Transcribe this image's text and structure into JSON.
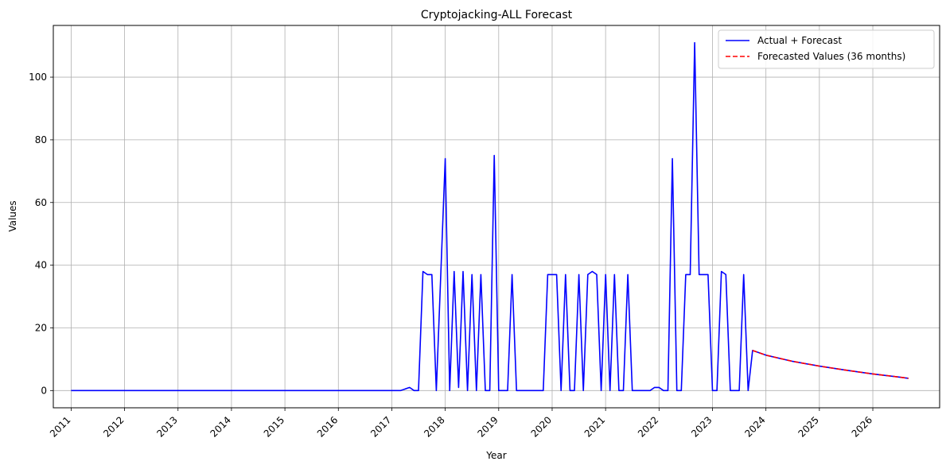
{
  "chart_data": {
    "type": "line",
    "title": "Cryptojacking-ALL Forecast",
    "xlabel": "Year",
    "ylabel": "Values",
    "x_ticks": [
      "2011",
      "2012",
      "2013",
      "2014",
      "2015",
      "2016",
      "2017",
      "2018",
      "2019",
      "2020",
      "2021",
      "2022",
      "2023",
      "2024",
      "2025",
      "2026"
    ],
    "y_ticks": [
      "0",
      "20",
      "40",
      "60",
      "80",
      "100"
    ],
    "xlim": [
      "2010-09",
      "2027-04"
    ],
    "ylim": [
      -5.5,
      116.5
    ],
    "grid": true,
    "legend_position": "top-right",
    "series": [
      {
        "name": "Actual + Forecast",
        "color": "#0000ff",
        "line_style": "solid",
        "points": [
          [
            "2011-01",
            0
          ],
          [
            "2017-03",
            0
          ],
          [
            "2017-05",
            1
          ],
          [
            "2017-06",
            0
          ],
          [
            "2017-07",
            0
          ],
          [
            "2017-08",
            38
          ],
          [
            "2017-09",
            37
          ],
          [
            "2017-10",
            37
          ],
          [
            "2017-11",
            0
          ],
          [
            "2018-01",
            74
          ],
          [
            "2018-02",
            0
          ],
          [
            "2018-03",
            38
          ],
          [
            "2018-04",
            1
          ],
          [
            "2018-05",
            38
          ],
          [
            "2018-06",
            0
          ],
          [
            "2018-07",
            37
          ],
          [
            "2018-08",
            0
          ],
          [
            "2018-09",
            37
          ],
          [
            "2018-10",
            0
          ],
          [
            "2018-11",
            0
          ],
          [
            "2018-12",
            75
          ],
          [
            "2019-01",
            0
          ],
          [
            "2019-02",
            0
          ],
          [
            "2019-03",
            0
          ],
          [
            "2019-04",
            37
          ],
          [
            "2019-05",
            0
          ],
          [
            "2019-11",
            0
          ],
          [
            "2019-12",
            37
          ],
          [
            "2020-01",
            37
          ],
          [
            "2020-02",
            37
          ],
          [
            "2020-03",
            0
          ],
          [
            "2020-04",
            37
          ],
          [
            "2020-05",
            0
          ],
          [
            "2020-06",
            0
          ],
          [
            "2020-07",
            37
          ],
          [
            "2020-08",
            0
          ],
          [
            "2020-09",
            37
          ],
          [
            "2020-10",
            38
          ],
          [
            "2020-11",
            37
          ],
          [
            "2020-12",
            0
          ],
          [
            "2021-01",
            37
          ],
          [
            "2021-02",
            0
          ],
          [
            "2021-03",
            37
          ],
          [
            "2021-04",
            0
          ],
          [
            "2021-05",
            0
          ],
          [
            "2021-06",
            37
          ],
          [
            "2021-07",
            0
          ],
          [
            "2021-11",
            0
          ],
          [
            "2021-12",
            1
          ],
          [
            "2022-01",
            1
          ],
          [
            "2022-02",
            0
          ],
          [
            "2022-03",
            0
          ],
          [
            "2022-04",
            74
          ],
          [
            "2022-05",
            0
          ],
          [
            "2022-06",
            0
          ],
          [
            "2022-07",
            37
          ],
          [
            "2022-08",
            37
          ],
          [
            "2022-09",
            111
          ],
          [
            "2022-10",
            37
          ],
          [
            "2022-11",
            37
          ],
          [
            "2022-12",
            37
          ],
          [
            "2023-01",
            0
          ],
          [
            "2023-02",
            0
          ],
          [
            "2023-03",
            38
          ],
          [
            "2023-04",
            37
          ],
          [
            "2023-05",
            0
          ],
          [
            "2023-06",
            0
          ],
          [
            "2023-07",
            0
          ],
          [
            "2023-08",
            37
          ],
          [
            "2023-09",
            0
          ],
          [
            "2023-10",
            12.8
          ],
          [
            "2024-01",
            11.3
          ],
          [
            "2024-07",
            9.3
          ],
          [
            "2025-01",
            7.8
          ],
          [
            "2025-07",
            6.5
          ],
          [
            "2026-01",
            5.3
          ],
          [
            "2026-07",
            4.3
          ],
          [
            "2026-09",
            3.9
          ]
        ]
      },
      {
        "name": "Forecasted Values (36 months)",
        "color": "#ff0000",
        "line_style": "dashed",
        "points": [
          [
            "2023-10",
            12.8
          ],
          [
            "2024-01",
            11.3
          ],
          [
            "2024-07",
            9.3
          ],
          [
            "2025-01",
            7.8
          ],
          [
            "2025-07",
            6.5
          ],
          [
            "2026-01",
            5.3
          ],
          [
            "2026-07",
            4.3
          ],
          [
            "2026-09",
            3.9
          ]
        ]
      }
    ]
  }
}
